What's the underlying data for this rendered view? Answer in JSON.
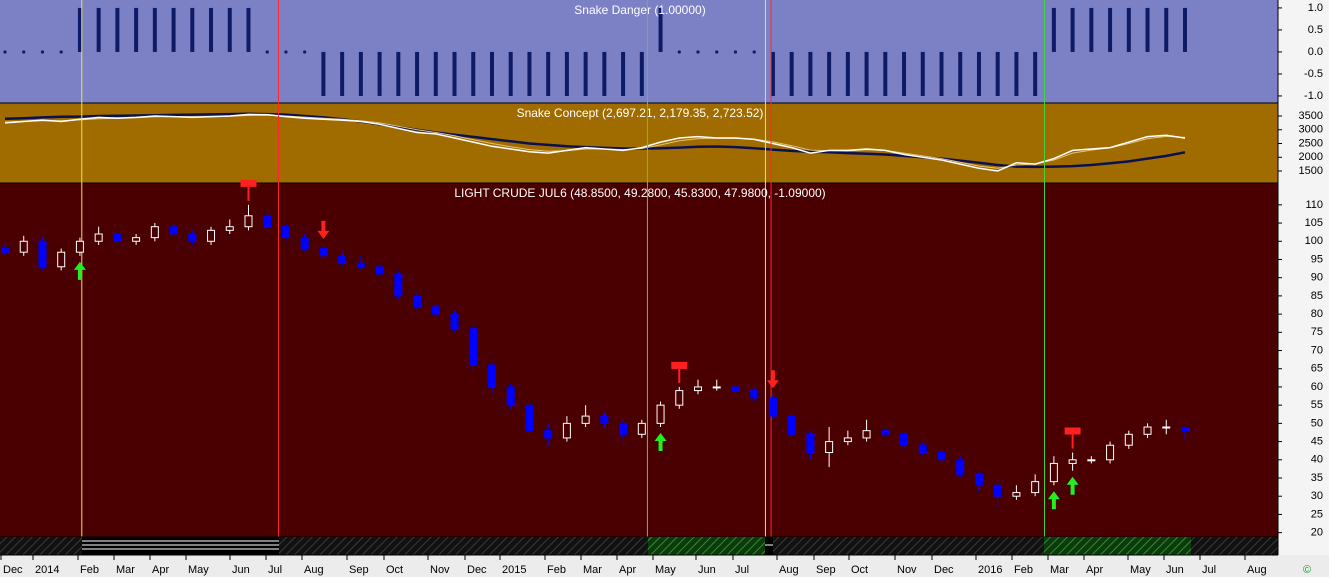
{
  "chart_data": [
    {
      "type": "bar",
      "title": "Snake Danger (1.00000)",
      "color": "#0d1a66",
      "background": "#7c80c4",
      "values": [
        0,
        0,
        0,
        0,
        1,
        1,
        1,
        1,
        1,
        1,
        1,
        1,
        1,
        1,
        0,
        0,
        0,
        -1,
        -1,
        -1,
        -1,
        -1,
        -1,
        -1,
        -1,
        -1,
        -1,
        -1,
        -1,
        -1,
        -1,
        -1,
        -1,
        -1,
        -1,
        1,
        0,
        0,
        0,
        0,
        0,
        -1,
        -1,
        -1,
        -1,
        -1,
        -1,
        -1,
        -1,
        -1,
        -1,
        -1,
        -1,
        -1,
        -1,
        -1,
        1,
        1,
        1,
        1,
        1,
        1,
        1,
        1
      ],
      "ylim": [
        -1.16,
        1.18
      ],
      "yticks": [
        {
          "value": 1,
          "label": "1.0"
        },
        0.5,
        {
          "value": 0,
          "label": "0.0"
        },
        -0.5,
        {
          "value": -1,
          "label": "-1.0"
        }
      ]
    },
    {
      "type": "line",
      "title": "Snake Concept (2,697.21, 2,179.35, 2,723.52)",
      "background": "#a06c00",
      "series": [
        {
          "color": "#0a1050",
          "values": [
            3400,
            3420,
            3450,
            3470,
            3480,
            3500,
            3510,
            3520,
            3530,
            3540,
            3550,
            3560,
            3570,
            3580,
            3570,
            3550,
            3500,
            3450,
            3380,
            3300,
            3200,
            3100,
            3000,
            2900,
            2820,
            2740,
            2660,
            2580,
            2500,
            2450,
            2400,
            2370,
            2340,
            2320,
            2320,
            2330,
            2350,
            2380,
            2390,
            2370,
            2330,
            2280,
            2230,
            2200,
            2180,
            2150,
            2130,
            2100,
            2050,
            2000,
            1950,
            1880,
            1800,
            1720,
            1660,
            1650,
            1660,
            1680,
            1720,
            1780,
            1850,
            1950,
            2050,
            2179.35
          ]
        },
        {
          "color": "#e6c27a",
          "values": [
            3280,
            3310,
            3330,
            3330,
            3360,
            3400,
            3420,
            3440,
            3470,
            3480,
            3470,
            3470,
            3490,
            3520,
            3530,
            3500,
            3460,
            3420,
            3380,
            3330,
            3250,
            3130,
            3000,
            2900,
            2780,
            2640,
            2500,
            2380,
            2280,
            2220,
            2240,
            2300,
            2300,
            2280,
            2320,
            2450,
            2600,
            2680,
            2690,
            2690,
            2660,
            2560,
            2420,
            2260,
            2240,
            2240,
            2270,
            2250,
            2150,
            2050,
            1950,
            1820,
            1680,
            1600,
            1720,
            1760,
            1900,
            2150,
            2260,
            2340,
            2500,
            2680,
            2760,
            2723.52
          ]
        },
        {
          "color": "#ffffff",
          "values": [
            3250,
            3300,
            3350,
            3300,
            3380,
            3450,
            3420,
            3450,
            3500,
            3480,
            3450,
            3480,
            3500,
            3560,
            3550,
            3480,
            3420,
            3380,
            3350,
            3300,
            3200,
            3050,
            2900,
            2850,
            2700,
            2550,
            2400,
            2300,
            2200,
            2150,
            2250,
            2350,
            2300,
            2250,
            2350,
            2550,
            2700,
            2750,
            2700,
            2700,
            2650,
            2500,
            2350,
            2150,
            2250,
            2250,
            2300,
            2250,
            2100,
            2000,
            1900,
            1750,
            1600,
            1500,
            1800,
            1750,
            1950,
            2250,
            2300,
            2350,
            2550,
            2750,
            2800,
            2697.21
          ]
        }
      ],
      "ylim": [
        1064,
        3973
      ],
      "yticks": [
        3500,
        3000,
        2500,
        2000,
        1500
      ]
    },
    {
      "type": "candlestick",
      "title": "LIGHT CRUDE JUL6 (48.8500, 49.2800, 45.8300, 47.9800, -1.09000)",
      "background": "#4a0000",
      "up_color": "#ffffff",
      "down_color": "#0000ff",
      "open": [
        98,
        97,
        100,
        93,
        97,
        100,
        102,
        100,
        101,
        104,
        102,
        100,
        103,
        104,
        107,
        104,
        101,
        98,
        96,
        94,
        93,
        91,
        85,
        82,
        80,
        76,
        66,
        60,
        55,
        48,
        46,
        50,
        52,
        50,
        47,
        50,
        55,
        59,
        60,
        60,
        59,
        57,
        52,
        47,
        42,
        45,
        46,
        48,
        47,
        44,
        42,
        40,
        36,
        33,
        30,
        31,
        34,
        39,
        40,
        40,
        44,
        47,
        49,
        48.85
      ],
      "high": [
        99.5,
        101.5,
        101,
        98,
        101,
        104,
        103,
        102,
        105,
        105,
        103,
        104,
        106,
        110,
        108,
        105,
        102,
        99,
        97,
        96,
        94,
        92,
        86,
        83,
        81,
        77,
        67,
        61,
        56,
        50,
        52,
        55,
        53,
        51,
        51,
        56,
        60,
        62,
        62,
        61,
        60,
        58,
        53,
        48,
        49,
        48,
        51,
        49,
        48,
        45,
        43,
        41,
        37,
        35,
        33,
        36,
        41,
        42,
        41,
        45,
        48,
        50,
        51,
        49.28
      ],
      "low": [
        96,
        96,
        92,
        92,
        96,
        99,
        99,
        99,
        100,
        101,
        99,
        99,
        102,
        103,
        103,
        100,
        97,
        95,
        93,
        92,
        90,
        84,
        81,
        79,
        75,
        64,
        58,
        54,
        46,
        44,
        45,
        49,
        49,
        45,
        46,
        49,
        54,
        58,
        59,
        58,
        56,
        51,
        46,
        40,
        38,
        44,
        45,
        46,
        43,
        41,
        39,
        35,
        31,
        27,
        29,
        30,
        33,
        37,
        39,
        39,
        43,
        46,
        47,
        45.83
      ],
      "close": [
        97,
        100,
        93,
        97,
        100,
        102,
        100,
        101,
        104,
        102,
        100,
        103,
        104,
        107,
        104,
        101,
        98,
        96,
        94,
        93,
        91,
        85,
        82,
        80,
        76,
        66,
        60,
        55,
        48,
        46,
        50,
        52,
        50,
        47,
        50,
        55,
        59,
        60,
        60,
        59,
        57,
        52,
        47,
        42,
        45,
        46,
        48,
        47,
        44,
        42,
        40,
        36,
        33,
        30,
        31,
        34,
        39,
        40,
        40,
        44,
        47,
        49,
        49,
        47.98
      ],
      "signals": {
        "buy": [
          4,
          35,
          56,
          57
        ],
        "sell": [
          17,
          41
        ],
        "exit": [
          13,
          36,
          57
        ]
      },
      "signal_lines": [
        {
          "x": 4.1,
          "color": "#e8e840"
        },
        {
          "x": 14.6,
          "color": "#ff2a2a"
        },
        {
          "x": 34.3,
          "color": "#3fd63f"
        },
        {
          "x": 40.6,
          "color": "#e8e840"
        },
        {
          "x": 40.9,
          "color": "#ff2a2a"
        },
        {
          "x": 55.5,
          "color": "#3fd63f"
        }
      ],
      "ylim": [
        18.8,
        116
      ],
      "yticks": [
        110,
        105,
        100,
        95,
        90,
        85,
        80,
        75,
        70,
        65,
        60,
        55,
        50,
        45,
        40,
        35,
        30,
        25,
        20
      ],
      "x_labels": [
        "Dec",
        "2014",
        "Feb",
        "Mar",
        "Apr",
        "May",
        "Jun",
        "Jul",
        "Aug",
        "Sep",
        "Oct",
        "Nov",
        "Dec",
        "2015",
        "Feb",
        "Mar",
        "Apr",
        "May",
        "Jun",
        "Jul",
        "Aug",
        "Sep",
        "Oct",
        "Nov",
        "Dec",
        "2016",
        "Feb",
        "Mar",
        "Apr",
        "May",
        "Jun",
        "Jul",
        "Aug"
      ]
    }
  ],
  "copyright": "©"
}
